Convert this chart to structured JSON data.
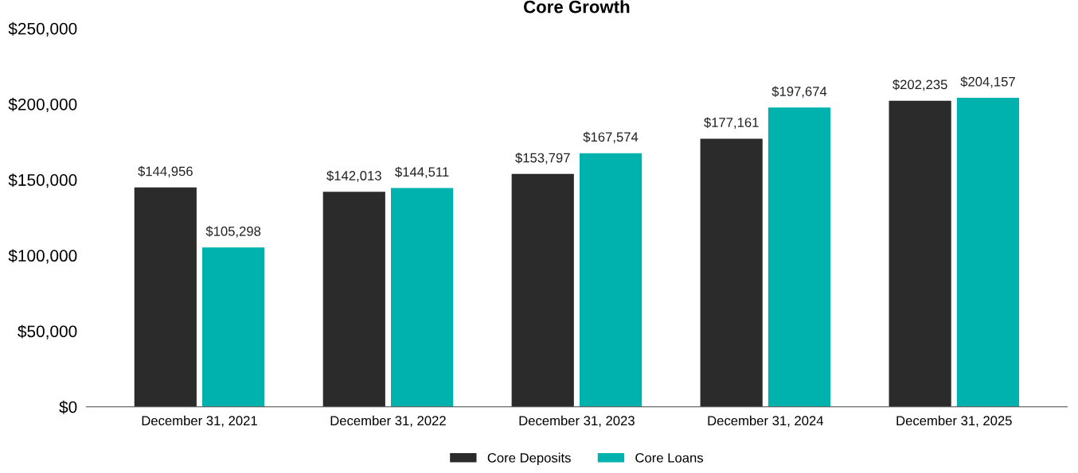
{
  "chart_data": {
    "type": "bar",
    "title": "Core Growth",
    "categories": [
      "December 31, 2021",
      "December 31, 2022",
      "December 31, 2023",
      "December 31, 2024",
      "December 31, 2025"
    ],
    "series": [
      {
        "name": "Core Deposits",
        "color": "#2b2b2b",
        "values": [
          144956,
          142013,
          153797,
          177161,
          202235
        ],
        "value_labels": [
          "$144,956",
          "$142,013",
          "$153,797",
          "$177,161",
          "$202,235"
        ]
      },
      {
        "name": "Core Loans",
        "color": "#00b2ad",
        "values": [
          105298,
          144511,
          167574,
          197674,
          204157
        ],
        "value_labels": [
          "$105,298",
          "$144,511",
          "$167,574",
          "$197,674",
          "$204,157"
        ]
      }
    ],
    "ylim": [
      0,
      250000
    ],
    "yticks": [
      {
        "value": 0,
        "label": "$0"
      },
      {
        "value": 50000,
        "label": "$50,000"
      },
      {
        "value": 100000,
        "label": "$100,000"
      },
      {
        "value": 150000,
        "label": "$150,000"
      },
      {
        "value": 200000,
        "label": "$200,000"
      },
      {
        "value": 250000,
        "label": "$250,000"
      }
    ],
    "grid": false,
    "legend": "bottom"
  }
}
